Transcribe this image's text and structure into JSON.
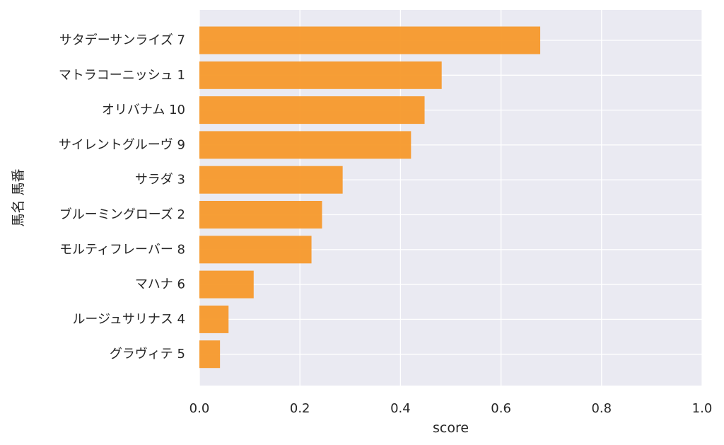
{
  "chart_data": {
    "type": "bar",
    "orientation": "horizontal",
    "categories": [
      "サタデーサンライズ 7",
      "マトラコーニッシュ 1",
      "オリバナム 10",
      "サイレントグルーヴ 9",
      "サラダ 3",
      "ブルーミングローズ 2",
      "モルティフレーバー 8",
      "マハナ 6",
      "ルージュサリナス 4",
      "グラヴィテ 5"
    ],
    "values": [
      0.678,
      0.482,
      0.448,
      0.421,
      0.285,
      0.244,
      0.223,
      0.108,
      0.058,
      0.041
    ],
    "xlabel": "score",
    "ylabel": "馬名 馬番",
    "xlim": [
      0,
      1.0
    ],
    "xticks": [
      "0.0",
      "0.2",
      "0.4",
      "0.6",
      "0.8",
      "1.0"
    ],
    "grid": true,
    "colors": {
      "bar": "#f7992b",
      "plot_background": "#eaeaf2",
      "grid": "#ffffff"
    }
  }
}
